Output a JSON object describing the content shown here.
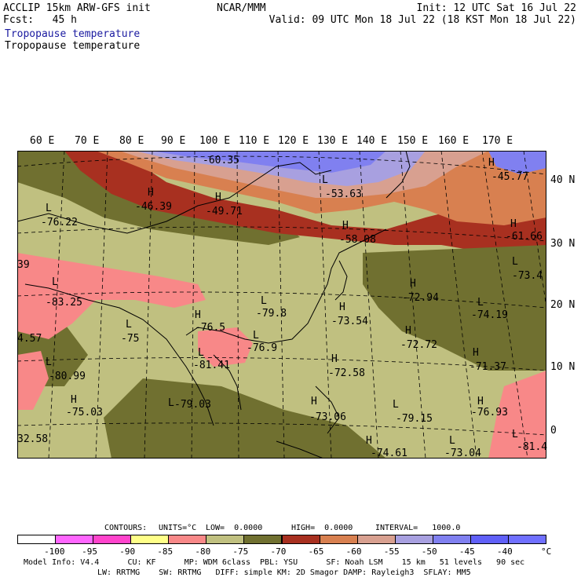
{
  "header": {
    "left_line1": "ACCLIP 15km ARW-GFS init",
    "left_line2": "Fcst:   45 h",
    "center": "NCAR/MMM",
    "right_line1": "Init: 12 UTC Sat 16 Jul 22",
    "right_line2": "Valid: 09 UTC Mon 18 Jul 22 (18 KST Mon 18 Jul 22)",
    "field_title_blue": "Tropopause temperature",
    "field_title_black": "Tropopause temperature"
  },
  "map": {
    "lon_labels": [
      "60 E",
      "70 E",
      "80 E",
      "90 E",
      "100 E",
      "110 E",
      "120 E",
      "130 E",
      "140 E",
      "150 E",
      "160 E",
      "170 E"
    ],
    "lat_labels": [
      "40 N",
      "30 N",
      "20 N",
      "10 N",
      "0"
    ],
    "extrema": [
      {
        "type": "H",
        "value": "-60.35"
      },
      {
        "type": "H",
        "value": "-45.77"
      },
      {
        "type": "L",
        "value": "-53.63"
      },
      {
        "type": "H",
        "value": "-46.39"
      },
      {
        "type": "H",
        "value": "-49.71"
      },
      {
        "type": "L",
        "value": "-76.22"
      },
      {
        "type": "H",
        "value": "-58.08"
      },
      {
        "type": "H",
        "value": "-61.66"
      },
      {
        "type": "L",
        "value": "-73.4"
      },
      {
        "type": "L",
        "value": "-83.25"
      },
      {
        "type": "H",
        "value": "-72.94"
      },
      {
        "type": "L",
        "value": "-74.19"
      },
      {
        "type": "L",
        "value": "-79.8"
      },
      {
        "type": "H",
        "value": "-73.54"
      },
      {
        "type": "H",
        "value": "-76.5"
      },
      {
        "type": "L",
        "value": "-75"
      },
      {
        "type": "L",
        "value": "-76.9"
      },
      {
        "type": "H",
        "value": "-72.72"
      },
      {
        "type": "L",
        "value": "-81.41"
      },
      {
        "type": "L",
        "value": "-80.99"
      },
      {
        "type": "H",
        "value": "-72.58"
      },
      {
        "type": "H",
        "value": "-71.37"
      },
      {
        "type": "H",
        "value": "-75.03"
      },
      {
        "type": "L",
        "value": "-79.03"
      },
      {
        "type": "H",
        "value": "-73.06"
      },
      {
        "type": "L",
        "value": "-79.15"
      },
      {
        "type": "H",
        "value": "-76.93"
      },
      {
        "type": "H",
        "value": "-74.61"
      },
      {
        "type": "L",
        "value": "-73.04"
      },
      {
        "type": "L",
        "value": "-81.4"
      },
      {
        "type": "",
        "value": "39"
      },
      {
        "type": "",
        "value": "4.57"
      },
      {
        "type": "",
        "value": "32.58"
      }
    ],
    "colors": {
      "magenta": "#ff55ff",
      "pink": "#f878b8",
      "yellow": "#ffff88",
      "salmon": "#f88888",
      "khaki": "#c0c080",
      "olive": "#707030",
      "darkred": "#a83020",
      "orange": "#d88050",
      "rose": "#d8a090",
      "lavender": "#a8a0e0",
      "periwinkle": "#8080f0",
      "blue": "#6060f8"
    }
  },
  "contours_line": {
    "contours": "CONTOURS:",
    "units": "UNITS=°C",
    "low": "LOW=  0.0000",
    "high": "HIGH=  0.0000",
    "interval": "INTERVAL=   1000.0"
  },
  "colorbar": {
    "ticks": [
      "-100",
      "-95",
      "-90",
      "-85",
      "-80",
      "-75",
      "-70",
      "-65",
      "-60",
      "-55",
      "-50",
      "-45",
      "-40"
    ],
    "unit": "°C",
    "colors": [
      "#ffffff",
      "#ff66ff",
      "#ff44cc",
      "#ffff88",
      "#f88888",
      "#c0c080",
      "#707030",
      "#a83020",
      "#d88050",
      "#d8a090",
      "#a8a0e0",
      "#8080f0",
      "#6060f8",
      "#7070ff"
    ]
  },
  "footer": {
    "line1": "Model Info: V4.4      CU: KF      MP: WDM 6class  PBL: YSU      SF: Noah LSM    15 km   51 levels   90 sec",
    "line2": "LW: RRTMG    SW: RRTMG   DIFF: simple KM: 2D Smagor DAMP: Rayleigh3  SFLAY: MM5"
  }
}
